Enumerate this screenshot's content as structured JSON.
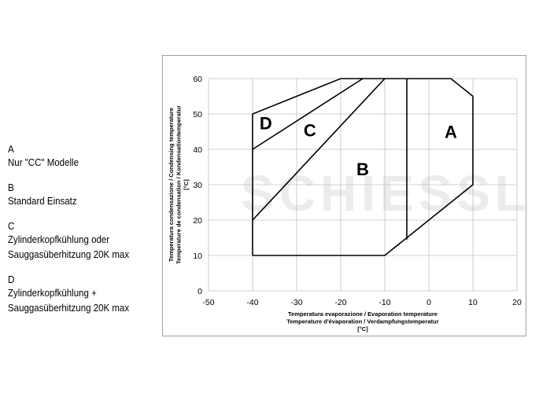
{
  "legend": [
    {
      "key": "A",
      "desc": "Nur \"CC\" Modelle"
    },
    {
      "key": "B",
      "desc": "Standard Einsatz"
    },
    {
      "key": "C",
      "desc": "Zylinderkopfkühlung oder\nSauggasüberhitzung 20K max"
    },
    {
      "key": "D",
      "desc": "Zylinderkopfkühlung +\nSauggasüberhitzung 20K max"
    }
  ],
  "watermark": "SCHIESSL",
  "chart_data": {
    "type": "line",
    "xlabel_lines": [
      "Temperatura evaporazione / Evaporation temperature",
      "Temperature d'évaporation / Verdampfungstemperatur",
      "[°C]"
    ],
    "ylabel_lines": [
      "Temperatura condensazione / Condensing temperature",
      "Temperature de condensation / Kondensationtemperatur",
      "[°C]"
    ],
    "xlim": [
      -50,
      20
    ],
    "ylim": [
      0,
      60
    ],
    "xticks": [
      -50,
      -40,
      -30,
      -20,
      -10,
      0,
      10,
      20
    ],
    "yticks": [
      0,
      10,
      20,
      30,
      40,
      50,
      60
    ],
    "grid": true,
    "line_color": "#000000",
    "grid_color": "#c0c0c0",
    "envelope": [
      {
        "x": -40,
        "y": 10
      },
      {
        "x": -10,
        "y": 10
      },
      {
        "x": 10,
        "y": 30
      },
      {
        "x": 10,
        "y": 55
      },
      {
        "x": 5,
        "y": 60
      },
      {
        "x": -20,
        "y": 60
      },
      {
        "x": -40,
        "y": 50
      },
      {
        "x": -40,
        "y": 10
      }
    ],
    "boundaries": [
      {
        "points": [
          {
            "x": -5,
            "y": 60
          },
          {
            "x": -5,
            "y": 14.5
          }
        ]
      },
      {
        "points": [
          {
            "x": -40,
            "y": 20
          },
          {
            "x": -10,
            "y": 60
          }
        ]
      },
      {
        "points": [
          {
            "x": -40,
            "y": 40
          },
          {
            "x": -15,
            "y": 60
          }
        ]
      }
    ],
    "region_labels": [
      {
        "text": "A",
        "x": 5,
        "y": 44.5
      },
      {
        "text": "B",
        "x": -15,
        "y": 34
      },
      {
        "text": "C",
        "x": -27,
        "y": 45
      },
      {
        "text": "D",
        "x": -37,
        "y": 47
      }
    ]
  }
}
